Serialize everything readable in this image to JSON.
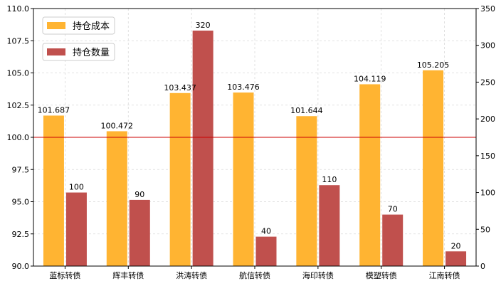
{
  "chart_data": {
    "type": "bar",
    "categories": [
      "蓝标转债",
      "辉丰转债",
      "洪涛转债",
      "航信转债",
      "海印转债",
      "模塑转债",
      "江南转债"
    ],
    "series": [
      {
        "name": "持仓成本",
        "axis": "left",
        "color": "#FFB432",
        "values": [
          101.687,
          100.472,
          103.437,
          103.476,
          101.644,
          104.119,
          105.205
        ],
        "labels": [
          "101.687",
          "100.472",
          "103.437",
          "103.476",
          "101.644",
          "104.119",
          "105.205"
        ]
      },
      {
        "name": "持仓数量",
        "axis": "right",
        "color": "#C0504D",
        "values": [
          100,
          90,
          320,
          40,
          110,
          70,
          20
        ],
        "labels": [
          "100",
          "90",
          "320",
          "40",
          "110",
          "70",
          "20"
        ]
      }
    ],
    "left_axis": {
      "ylim": [
        90.0,
        110.0
      ],
      "ticks": [
        90.0,
        92.5,
        95.0,
        97.5,
        100.0,
        102.5,
        105.0,
        107.5,
        110.0
      ],
      "tick_labels": [
        "90.0",
        "92.5",
        "95.0",
        "97.5",
        "100.0",
        "102.5",
        "105.0",
        "107.5",
        "110.0"
      ]
    },
    "right_axis": {
      "ylim": [
        0,
        350
      ],
      "ticks": [
        0,
        50,
        100,
        150,
        200,
        250,
        300,
        350
      ],
      "tick_labels": [
        "0",
        "50",
        "100",
        "150",
        "200",
        "250",
        "300",
        "350"
      ]
    },
    "reference_line": {
      "axis": "left",
      "value": 100.0,
      "color": "#CC0000"
    },
    "grid": true,
    "legend_placement": "top-left",
    "title": "",
    "xlabel": "",
    "ylabel": ""
  }
}
